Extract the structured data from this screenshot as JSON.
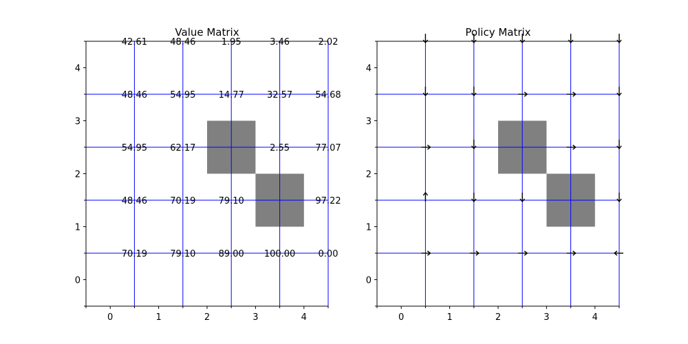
{
  "colors": {
    "grid_line": "#0000ff",
    "obstacle": "#808080",
    "axis": "#000000",
    "arrow": "#000000"
  },
  "chart_data": [
    {
      "type": "heatmap",
      "title": "Value Matrix",
      "xlim": [
        -0.5,
        4.5
      ],
      "ylim": [
        -0.5,
        4.5
      ],
      "xticks": [
        0,
        1,
        2,
        3,
        4
      ],
      "yticks": [
        0,
        1,
        2,
        3,
        4
      ],
      "obstacles": [
        [
          2,
          2
        ],
        [
          3,
          1
        ]
      ],
      "grid_lines": [
        0.5,
        1.5,
        2.5,
        3.5,
        4.5
      ],
      "cells": [
        {
          "x": 0.5,
          "y": 4.5,
          "label": "42.61"
        },
        {
          "x": 1.5,
          "y": 4.5,
          "label": "48.46"
        },
        {
          "x": 2.5,
          "y": 4.5,
          "label": "1.95"
        },
        {
          "x": 3.5,
          "y": 4.5,
          "label": "3.46"
        },
        {
          "x": 4.5,
          "y": 4.5,
          "label": "2.02"
        },
        {
          "x": 0.5,
          "y": 3.5,
          "label": "48.46"
        },
        {
          "x": 1.5,
          "y": 3.5,
          "label": "54.95"
        },
        {
          "x": 2.5,
          "y": 3.5,
          "label": "14.77"
        },
        {
          "x": 3.5,
          "y": 3.5,
          "label": "32.57"
        },
        {
          "x": 4.5,
          "y": 3.5,
          "label": "54.68"
        },
        {
          "x": 0.5,
          "y": 2.5,
          "label": "54.95"
        },
        {
          "x": 1.5,
          "y": 2.5,
          "label": "62.17"
        },
        {
          "x": 3.5,
          "y": 2.5,
          "label": "2.55"
        },
        {
          "x": 4.5,
          "y": 2.5,
          "label": "77.07"
        },
        {
          "x": 0.5,
          "y": 1.5,
          "label": "48.46"
        },
        {
          "x": 1.5,
          "y": 1.5,
          "label": "70.19"
        },
        {
          "x": 2.5,
          "y": 1.5,
          "label": "79.10"
        },
        {
          "x": 4.5,
          "y": 1.5,
          "label": "97.22"
        },
        {
          "x": 0.5,
          "y": 0.5,
          "label": "70.19"
        },
        {
          "x": 1.5,
          "y": 0.5,
          "label": "79.10"
        },
        {
          "x": 2.5,
          "y": 0.5,
          "label": "89.00"
        },
        {
          "x": 3.5,
          "y": 0.5,
          "label": "100.00"
        },
        {
          "x": 4.5,
          "y": 0.5,
          "label": "0.00"
        }
      ]
    },
    {
      "type": "heatmap",
      "title": "Policy Matrix",
      "xlim": [
        -0.5,
        4.5
      ],
      "ylim": [
        -0.5,
        4.5
      ],
      "xticks": [
        0,
        1,
        2,
        3,
        4
      ],
      "yticks": [
        0,
        1,
        2,
        3,
        4
      ],
      "obstacles": [
        [
          2,
          2
        ],
        [
          3,
          1
        ]
      ],
      "grid_lines": [
        0.5,
        1.5,
        2.5,
        3.5,
        4.5
      ],
      "arrows": [
        {
          "x": 0.5,
          "y": 4.5,
          "dir": "down"
        },
        {
          "x": 1.5,
          "y": 4.5,
          "dir": "down"
        },
        {
          "x": 2.5,
          "y": 4.5,
          "dir": "down"
        },
        {
          "x": 3.5,
          "y": 4.5,
          "dir": "down"
        },
        {
          "x": 4.5,
          "y": 4.5,
          "dir": "down"
        },
        {
          "x": 0.5,
          "y": 3.5,
          "dir": "down"
        },
        {
          "x": 1.5,
          "y": 3.5,
          "dir": "down"
        },
        {
          "x": 2.5,
          "y": 3.5,
          "dir": "right"
        },
        {
          "x": 3.5,
          "y": 3.5,
          "dir": "right"
        },
        {
          "x": 4.5,
          "y": 3.5,
          "dir": "down"
        },
        {
          "x": 0.5,
          "y": 2.5,
          "dir": "right"
        },
        {
          "x": 1.5,
          "y": 2.5,
          "dir": "down"
        },
        {
          "x": 3.5,
          "y": 2.5,
          "dir": "right"
        },
        {
          "x": 4.5,
          "y": 2.5,
          "dir": "down"
        },
        {
          "x": 0.5,
          "y": 1.5,
          "dir": "up"
        },
        {
          "x": 1.5,
          "y": 1.5,
          "dir": "down"
        },
        {
          "x": 2.5,
          "y": 1.5,
          "dir": "down"
        },
        {
          "x": 4.5,
          "y": 1.5,
          "dir": "down"
        },
        {
          "x": 0.5,
          "y": 0.5,
          "dir": "right"
        },
        {
          "x": 1.5,
          "y": 0.5,
          "dir": "right"
        },
        {
          "x": 2.5,
          "y": 0.5,
          "dir": "right"
        },
        {
          "x": 3.5,
          "y": 0.5,
          "dir": "right"
        },
        {
          "x": 4.5,
          "y": 0.5,
          "dir": "left"
        }
      ]
    }
  ]
}
